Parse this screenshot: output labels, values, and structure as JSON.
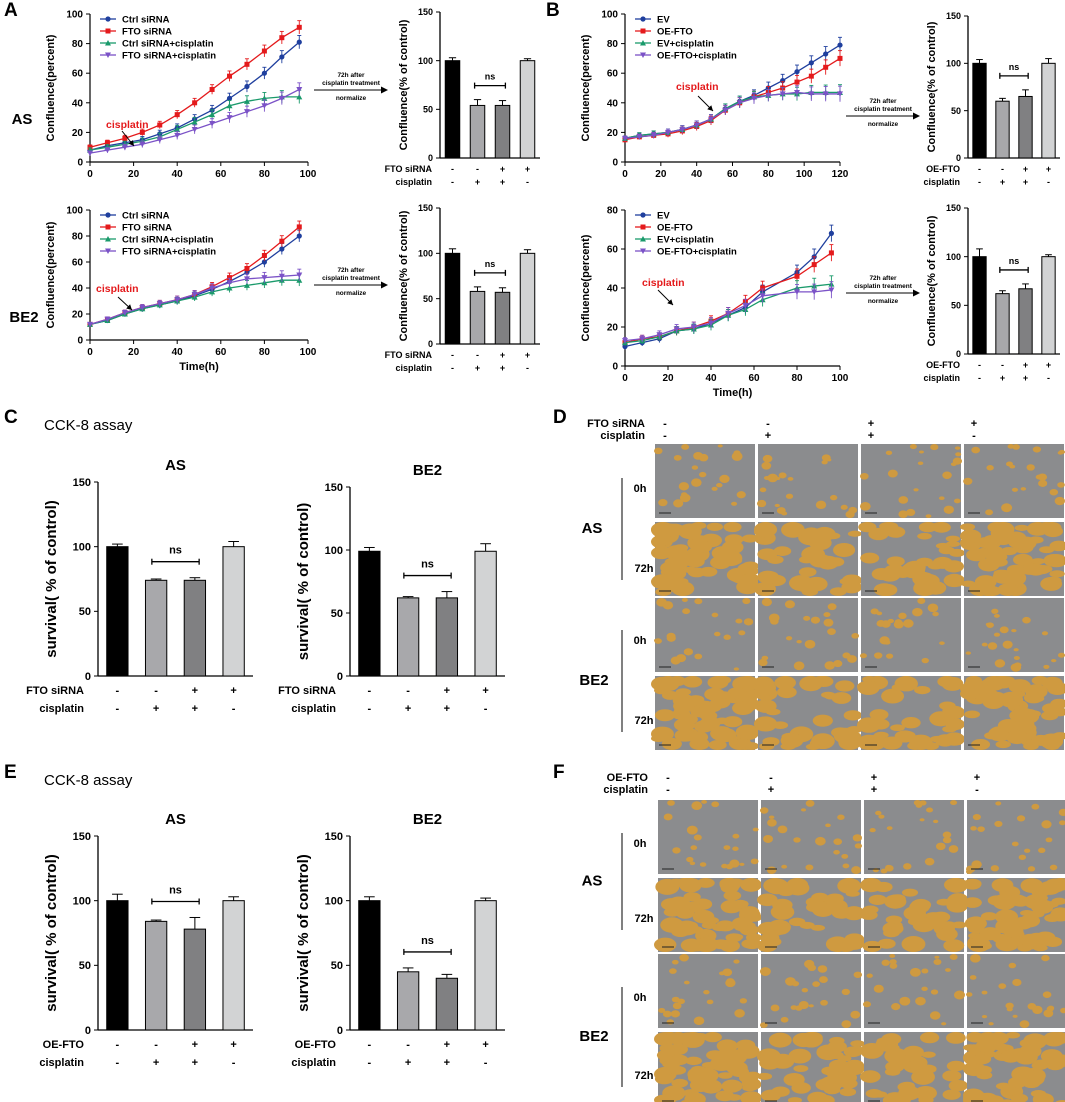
{
  "panels": [
    {
      "id": "A",
      "label": "A"
    },
    {
      "id": "B",
      "label": "B"
    },
    {
      "id": "C",
      "label": "C"
    },
    {
      "id": "D",
      "label": "D"
    },
    {
      "id": "E",
      "label": "E"
    },
    {
      "id": "F",
      "label": "F"
    }
  ],
  "assay_titles": {
    "C": "CCK-8 assay",
    "E": "CCK-8 assay"
  },
  "row_labels": {
    "AS": "AS",
    "BE2": "BE2"
  },
  "arrow_note": {
    "line1": "72h after",
    "line2": "cisplatin treatment",
    "line3": "normalize"
  },
  "annotation": {
    "cisplatin": "cisplatin",
    "ns": "ns"
  },
  "legend_A": [
    "Ctrl siRNA",
    "FTO siRNA",
    "Ctrl siRNA+cisplatin",
    "FTO siRNA+cisplatin"
  ],
  "legend_B": [
    "EV",
    "OE-FTO",
    "EV+cisplatin",
    "OE-FTO+cisplatin"
  ],
  "series_colors": [
    "#1f3f9e",
    "#e41a1c",
    "#1a9a6b",
    "#7b52c7"
  ],
  "bar_colors": [
    "#000000",
    "#a8a8ab",
    "#808082",
    "#d2d3d4"
  ],
  "image_overlay_colors": {
    "gap": "#8b8c8e",
    "cells": "#cf9a40"
  },
  "factor_rows": {
    "fto": "FTO siRNA",
    "oe": "OE-FTO",
    "cis": "cisplatin"
  },
  "signs": {
    "fto": [
      "-",
      "-",
      "+",
      "+"
    ],
    "cis_bar": [
      "-",
      "+",
      "+",
      "-"
    ]
  },
  "sign_headers_D": {
    "fto": [
      "-",
      "-",
      "+",
      "+"
    ],
    "cis": [
      "-",
      "+",
      "+",
      "-"
    ]
  },
  "time_labels": {
    "t0": "0h",
    "t72": "72h"
  },
  "chart_data": [
    {
      "id": "A-AS",
      "type": "line",
      "xlabel": "",
      "ylabel": "Confluence(percent)",
      "xlim": [
        0,
        100
      ],
      "ylim": [
        0,
        100
      ],
      "xticks": [
        0,
        20,
        40,
        60,
        80,
        100
      ],
      "yticks": [
        0,
        20,
        40,
        60,
        80,
        100
      ],
      "x": [
        0,
        8,
        16,
        24,
        32,
        40,
        48,
        56,
        64,
        72,
        80,
        88,
        96
      ],
      "series": [
        {
          "name": "Ctrl siRNA",
          "values": [
            8,
            11,
            13,
            15,
            19,
            23,
            29,
            35,
            43,
            51,
            60,
            71,
            81
          ]
        },
        {
          "name": "FTO siRNA",
          "values": [
            10,
            13,
            16,
            20,
            25,
            32,
            40,
            49,
            58,
            66,
            75,
            84,
            91
          ]
        },
        {
          "name": "Ctrl siRNA+cisplatin",
          "values": [
            8,
            10,
            12,
            14,
            17,
            22,
            27,
            32,
            38,
            41,
            43,
            44,
            44
          ]
        },
        {
          "name": "FTO siRNA+cisplatin",
          "values": [
            6,
            8,
            10,
            12,
            15,
            18,
            22,
            26,
            30,
            34,
            38,
            43,
            49
          ]
        }
      ]
    },
    {
      "id": "A-BE2",
      "type": "line",
      "xlabel": "Time(h)",
      "ylabel": "Confluence(percent)",
      "xlim": [
        0,
        100
      ],
      "ylim": [
        0,
        100
      ],
      "xticks": [
        0,
        20,
        40,
        60,
        80,
        100
      ],
      "yticks": [
        0,
        20,
        40,
        60,
        80,
        100
      ],
      "x": [
        0,
        8,
        16,
        24,
        32,
        40,
        48,
        56,
        64,
        72,
        80,
        88,
        96
      ],
      "series": [
        {
          "name": "Ctrl siRNA",
          "values": [
            12,
            15,
            20,
            24,
            27,
            30,
            34,
            39,
            45,
            52,
            60,
            70,
            80
          ]
        },
        {
          "name": "FTO siRNA",
          "values": [
            12,
            16,
            21,
            25,
            28,
            31,
            35,
            41,
            48,
            55,
            65,
            76,
            87
          ]
        },
        {
          "name": "Ctrl siRNA+cisplatin",
          "values": [
            12,
            15,
            20,
            24,
            27,
            30,
            33,
            37,
            40,
            42,
            44,
            46,
            46
          ]
        },
        {
          "name": "FTO siRNA+cisplatin",
          "values": [
            12,
            16,
            21,
            25,
            28,
            31,
            35,
            40,
            44,
            47,
            48,
            49,
            50
          ]
        }
      ]
    },
    {
      "id": "B-AS",
      "type": "line",
      "xlabel": "",
      "ylabel": "Confluence(percent)",
      "xlim": [
        0,
        120
      ],
      "ylim": [
        0,
        100
      ],
      "xticks": [
        0,
        20,
        40,
        60,
        80,
        100,
        120
      ],
      "yticks": [
        0,
        20,
        40,
        60,
        80,
        100
      ],
      "x": [
        0,
        8,
        16,
        24,
        32,
        40,
        48,
        56,
        64,
        72,
        80,
        88,
        96,
        104,
        112,
        120
      ],
      "series": [
        {
          "name": "EV",
          "values": [
            16,
            18,
            19,
            20,
            22,
            25,
            29,
            36,
            41,
            45,
            50,
            55,
            61,
            67,
            73,
            79
          ]
        },
        {
          "name": "OE-FTO",
          "values": [
            15,
            17,
            18,
            19,
            21,
            24,
            28,
            35,
            40,
            44,
            47,
            50,
            54,
            58,
            64,
            70
          ]
        },
        {
          "name": "EV+cisplatin",
          "values": [
            16,
            18,
            19,
            20,
            22,
            25,
            29,
            36,
            41,
            44,
            45,
            46,
            46,
            47,
            47,
            47
          ]
        },
        {
          "name": "OE-FTO+cisplatin",
          "values": [
            16,
            17,
            18,
            20,
            22,
            25,
            29,
            35,
            40,
            43,
            45,
            46,
            47,
            46,
            46,
            46
          ]
        }
      ]
    },
    {
      "id": "B-BE2",
      "type": "line",
      "xlabel": "Time(h)",
      "ylabel": "Confluence(percent)",
      "xlim": [
        0,
        100
      ],
      "ylim": [
        0,
        80
      ],
      "xticks": [
        0,
        20,
        40,
        60,
        80,
        100
      ],
      "yticks": [
        0,
        20,
        40,
        60,
        80
      ],
      "x": [
        0,
        8,
        16,
        24,
        32,
        40,
        48,
        56,
        64,
        80,
        88,
        96
      ],
      "series": [
        {
          "name": "EV",
          "values": [
            10,
            12,
            14,
            18,
            19,
            22,
            26,
            30,
            38,
            48,
            56,
            68
          ]
        },
        {
          "name": "OE-FTO",
          "values": [
            12,
            14,
            15,
            18,
            20,
            23,
            27,
            33,
            40,
            46,
            52,
            58
          ]
        },
        {
          "name": "EV+cisplatin",
          "values": [
            12,
            13,
            15,
            18,
            19,
            21,
            26,
            29,
            34,
            40,
            41,
            42
          ]
        },
        {
          "name": "OE-FTO+cisplatin",
          "values": [
            13,
            14,
            16,
            19,
            20,
            22,
            27,
            31,
            36,
            38,
            38,
            39
          ]
        }
      ]
    },
    {
      "id": "A-AS-bar",
      "type": "bar",
      "ylabel": "Confluence(% of control)",
      "ylim": [
        0,
        150
      ],
      "yticks": [
        0,
        50,
        100,
        150
      ],
      "values": [
        100,
        54,
        54,
        100
      ],
      "errors": [
        3,
        6,
        5,
        2
      ],
      "factors": [
        "fto",
        "cis"
      ]
    },
    {
      "id": "A-BE2-bar",
      "type": "bar",
      "ylabel": "Confluence(% of control)",
      "ylim": [
        0,
        150
      ],
      "yticks": [
        0,
        50,
        100,
        150
      ],
      "values": [
        100,
        58,
        57,
        100
      ],
      "errors": [
        5,
        5,
        5,
        4
      ],
      "factors": [
        "fto",
        "cis"
      ]
    },
    {
      "id": "B-AS-bar",
      "type": "bar",
      "ylabel": "Confluence(% of control)",
      "ylim": [
        0,
        150
      ],
      "yticks": [
        0,
        50,
        100,
        150
      ],
      "values": [
        100,
        60,
        65,
        100
      ],
      "errors": [
        4,
        3,
        7,
        5
      ],
      "factors": [
        "oe",
        "cis"
      ]
    },
    {
      "id": "B-BE2-bar",
      "type": "bar",
      "ylabel": "Confluence(% of control)",
      "ylim": [
        0,
        150
      ],
      "yticks": [
        0,
        50,
        100,
        150
      ],
      "values": [
        100,
        62,
        67,
        100
      ],
      "errors": [
        8,
        3,
        5,
        2
      ],
      "factors": [
        "oe",
        "cis"
      ]
    },
    {
      "id": "C-AS",
      "type": "bar",
      "title": "AS",
      "ylabel": "survival( % of control)",
      "ylim": [
        0,
        150
      ],
      "yticks": [
        0,
        50,
        100,
        150
      ],
      "values": [
        100,
        74,
        74,
        100
      ],
      "errors": [
        2,
        1,
        2,
        4
      ],
      "factors": [
        "fto",
        "cis"
      ]
    },
    {
      "id": "C-BE2",
      "type": "bar",
      "title": "BE2",
      "ylabel": "survival( % of control)",
      "ylim": [
        0,
        150
      ],
      "yticks": [
        0,
        50,
        100,
        150
      ],
      "values": [
        99,
        62,
        62,
        99
      ],
      "errors": [
        3,
        1,
        5,
        6
      ],
      "factors": [
        "fto",
        "cis"
      ]
    },
    {
      "id": "E-AS",
      "type": "bar",
      "title": "AS",
      "ylabel": "survival( % of control)",
      "ylim": [
        0,
        150
      ],
      "yticks": [
        0,
        50,
        100,
        150
      ],
      "values": [
        100,
        84,
        78,
        100
      ],
      "errors": [
        5,
        1,
        9,
        3
      ],
      "factors": [
        "oe",
        "cis"
      ]
    },
    {
      "id": "E-BE2",
      "type": "bar",
      "title": "BE2",
      "ylabel": "survival( % of control)",
      "ylim": [
        0,
        150
      ],
      "yticks": [
        0,
        50,
        100,
        150
      ],
      "values": [
        100,
        45,
        40,
        100
      ],
      "errors": [
        3,
        3,
        3,
        2
      ],
      "factors": [
        "oe",
        "cis"
      ]
    }
  ]
}
